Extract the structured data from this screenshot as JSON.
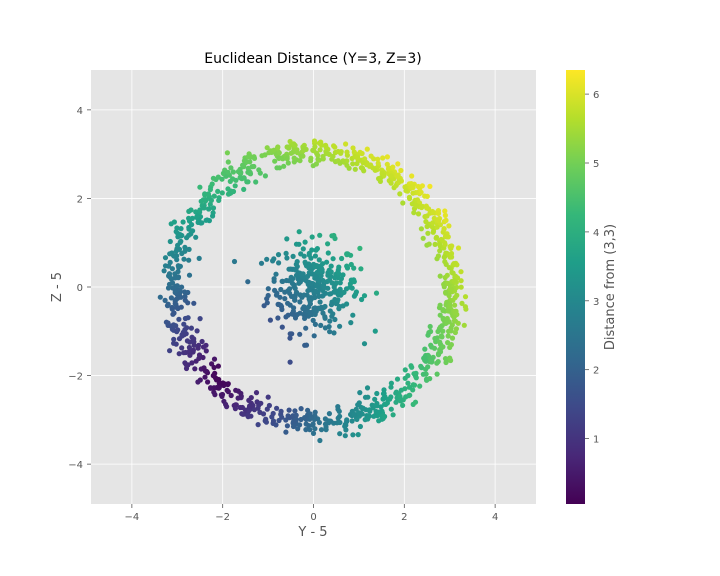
{
  "chart_data": {
    "type": "scatter",
    "title": "Euclidean Distance (Y=3, Z=3)",
    "xlabel": "Y - 5",
    "ylabel": "Z - 5",
    "xlim": [
      -4.9,
      4.9
    ],
    "ylim": [
      -4.9,
      4.9
    ],
    "xticks": [
      -4,
      -2,
      0,
      2,
      4
    ],
    "yticks": [
      -4,
      -2,
      0,
      2,
      4
    ],
    "grid": true,
    "colormap": "viridis",
    "colorbar": {
      "label": "Distance from (3,3)",
      "range": [
        0.05,
        6.35
      ],
      "ticks": [
        1,
        2,
        3,
        4,
        5,
        6
      ]
    },
    "structure": {
      "inner_cluster": {
        "center": [
          0.0,
          0.0
        ],
        "spread": 0.5,
        "count": 320
      },
      "outer_ring": {
        "center": [
          0.0,
          0.0
        ],
        "radius": 3.05,
        "width": 0.16,
        "count": 1000
      },
      "distance_reference": [
        -2.0,
        -2.0
      ]
    }
  },
  "colors": {
    "plot_background": "#e5e5e5",
    "grid": "#ffffff",
    "viridis": [
      "#440154",
      "#482878",
      "#3e4989",
      "#31688e",
      "#26828e",
      "#1f9e89",
      "#35b779",
      "#6ece58",
      "#b5de2b",
      "#fde725"
    ]
  }
}
